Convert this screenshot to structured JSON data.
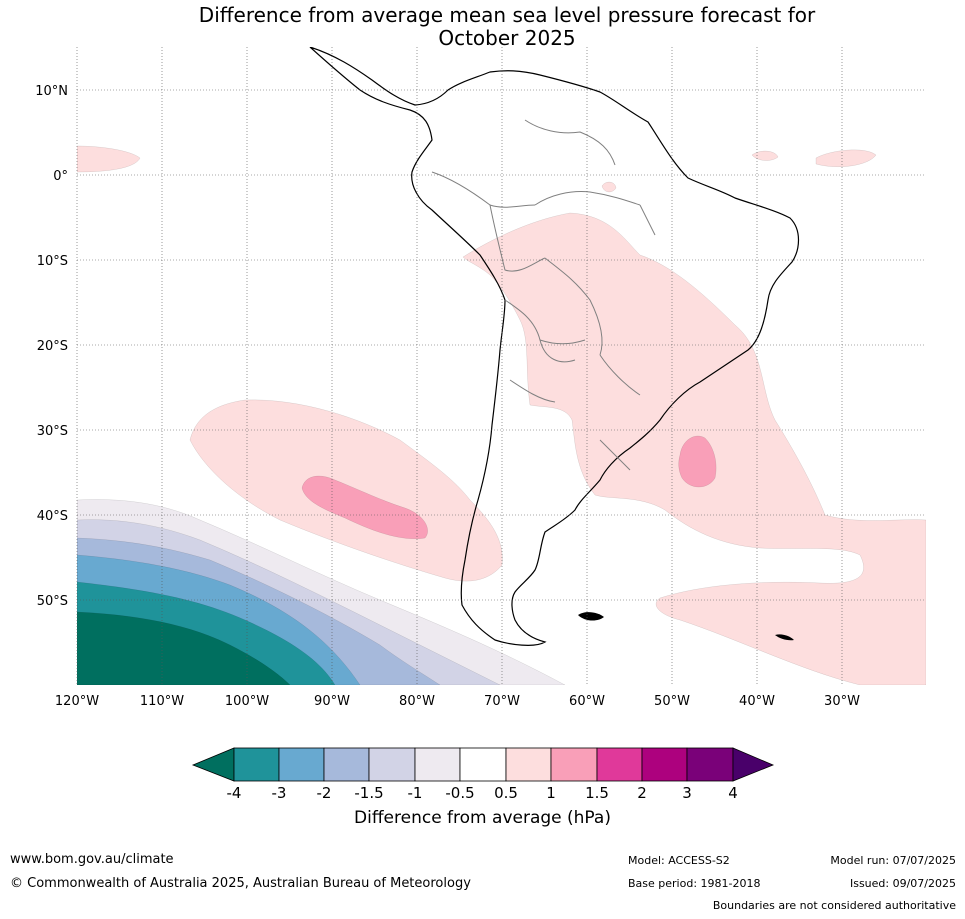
{
  "title": {
    "line1": "Difference from average mean sea level pressure forecast for",
    "line2": "October 2025"
  },
  "map": {
    "lat_labels": [
      "10°N",
      "0°",
      "10°S",
      "20°S",
      "30°S",
      "40°S",
      "50°S"
    ],
    "lon_labels": [
      "120°W",
      "110°W",
      "100°W",
      "90°W",
      "80°W",
      "70°W",
      "60°W",
      "50°W",
      "40°W",
      "30°W"
    ],
    "colors": {
      "lt_neg4": "#006f5f",
      "neg4_neg3": "#1f939a",
      "neg3_neg2": "#68a9d0",
      "neg2_neg15": "#a6b9db",
      "neg15_neg1": "#d2d3e6",
      "neg1_neg05": "#eeeaf0",
      "neutral": "#ffffff",
      "p05_1": "#fddede",
      "p1_15": "#f99fb8",
      "p15_2": "#e0399a",
      "p2_3": "#ad017e",
      "p3_4": "#7a0179",
      "gt4": "#49006a",
      "coast": "#000000",
      "borders": "#808080",
      "grid": "#555555"
    }
  },
  "colorbar": {
    "ticks": [
      "-4",
      "-3",
      "-2",
      "-1.5",
      "-1",
      "-0.5",
      "0.5",
      "1",
      "1.5",
      "2",
      "3",
      "4"
    ],
    "label": "Difference from average (hPa)"
  },
  "footer": {
    "website": "www.bom.gov.au/climate",
    "copyright": "© Commonwealth of Australia 2025, Australian Bureau of Meteorology",
    "model": "Model: ACCESS-S2",
    "base_period": "Base period: 1981-2018",
    "model_run": "Model run: 07/07/2025",
    "issued": "Issued: 09/07/2025",
    "disclaimer": "Boundaries are not considered authoritative"
  }
}
